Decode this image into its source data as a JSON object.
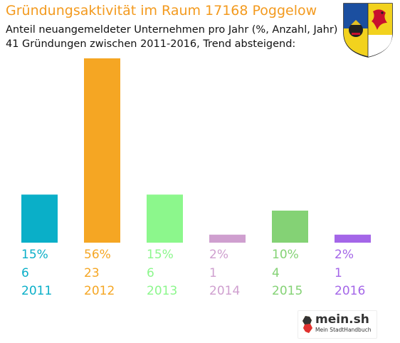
{
  "header": {
    "title": "Gründungsaktivität im Raum 17168 Poggelow",
    "subtitle_line1": "Anteil neuangemeldeter Unternehmen pro Jahr (%, Anzahl, Jahr)",
    "subtitle_line2": "41 Gründungen zwischen 2011-2016, Trend absteigend:"
  },
  "branding": {
    "logo_text": "mein.sh",
    "logo_tagline": "Mein StadtHandbuch"
  },
  "chart_data": {
    "type": "bar",
    "title": "Gründungsaktivität im Raum 17168 Poggelow",
    "categories": [
      "2011",
      "2012",
      "2013",
      "2014",
      "2015",
      "2016"
    ],
    "percent_labels": [
      "15%",
      "56%",
      "15%",
      "2%",
      "10%",
      "2%"
    ],
    "series": [
      {
        "values": [
          6,
          23,
          6,
          1,
          4,
          1
        ]
      }
    ],
    "colors": [
      "#0aafc8",
      "#f5a623",
      "#8cf78c",
      "#cf9fcf",
      "#84d275",
      "#a466e8"
    ],
    "grid": false,
    "legend": "none"
  }
}
